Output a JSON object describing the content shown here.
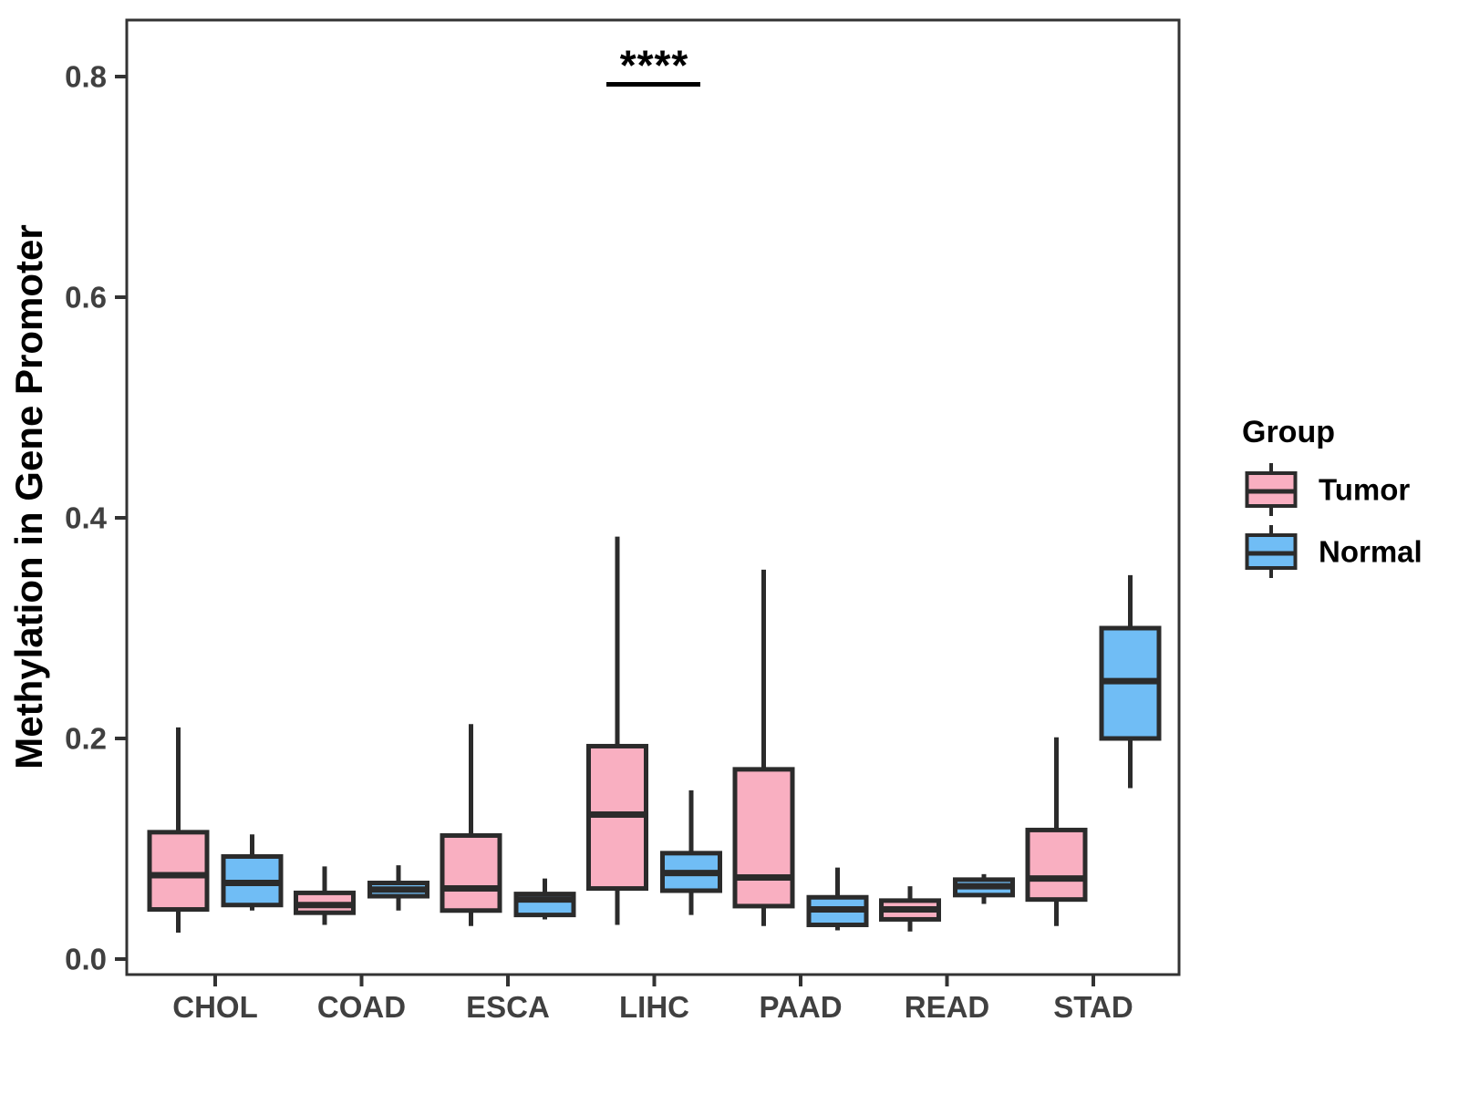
{
  "figure": {
    "legend": {
      "title": "Group",
      "items": [
        {
          "label": "Tumor",
          "color": "#F9AFC1"
        },
        {
          "label": "Normal",
          "color": "#70BDF5"
        }
      ]
    }
  },
  "style": {
    "tumor_fill": "#F9AFC1",
    "normal_fill": "#70BDF5",
    "box_outline": "#2B2B2B",
    "panel_border": "#333333",
    "axis_text": "#404040",
    "annotation_color": "#000000"
  },
  "chart_data": {
    "type": "boxplot",
    "title": "",
    "xlabel": "",
    "ylabel": "Methylation in Gene Promoter",
    "ylim": [
      0,
      0.85
    ],
    "yticks": [
      0.0,
      0.2,
      0.4,
      0.6,
      0.8
    ],
    "grid": false,
    "legend_position": "right",
    "categories": [
      "CHOL",
      "COAD",
      "ESCA",
      "LIHC",
      "PAAD",
      "READ",
      "STAD"
    ],
    "groups": [
      "Tumor",
      "Normal"
    ],
    "series": [
      {
        "name": "Tumor",
        "color": "#F9AFC1",
        "boxes": [
          {
            "category": "CHOL",
            "whisker_low": 0.024,
            "q1": 0.045,
            "median": 0.076,
            "q3": 0.115,
            "whisker_high": 0.21
          },
          {
            "category": "COAD",
            "whisker_low": 0.031,
            "q1": 0.042,
            "median": 0.049,
            "q3": 0.06,
            "whisker_high": 0.084
          },
          {
            "category": "ESCA",
            "whisker_low": 0.03,
            "q1": 0.044,
            "median": 0.064,
            "q3": 0.112,
            "whisker_high": 0.213
          },
          {
            "category": "LIHC",
            "whisker_low": 0.031,
            "q1": 0.064,
            "median": 0.131,
            "q3": 0.193,
            "whisker_high": 0.383
          },
          {
            "category": "PAAD",
            "whisker_low": 0.03,
            "q1": 0.048,
            "median": 0.074,
            "q3": 0.172,
            "whisker_high": 0.353
          },
          {
            "category": "READ",
            "whisker_low": 0.025,
            "q1": 0.036,
            "median": 0.045,
            "q3": 0.053,
            "whisker_high": 0.066
          },
          {
            "category": "STAD",
            "whisker_low": 0.03,
            "q1": 0.054,
            "median": 0.073,
            "q3": 0.117,
            "whisker_high": 0.201
          }
        ]
      },
      {
        "name": "Normal",
        "color": "#70BDF5",
        "boxes": [
          {
            "category": "CHOL",
            "whisker_low": 0.044,
            "q1": 0.049,
            "median": 0.069,
            "q3": 0.093,
            "whisker_high": 0.113
          },
          {
            "category": "COAD",
            "whisker_low": 0.044,
            "q1": 0.057,
            "median": 0.063,
            "q3": 0.069,
            "whisker_high": 0.085
          },
          {
            "category": "ESCA",
            "whisker_low": 0.036,
            "q1": 0.04,
            "median": 0.054,
            "q3": 0.059,
            "whisker_high": 0.073
          },
          {
            "category": "LIHC",
            "whisker_low": 0.04,
            "q1": 0.062,
            "median": 0.078,
            "q3": 0.096,
            "whisker_high": 0.153
          },
          {
            "category": "PAAD",
            "whisker_low": 0.026,
            "q1": 0.031,
            "median": 0.045,
            "q3": 0.056,
            "whisker_high": 0.083
          },
          {
            "category": "READ",
            "whisker_low": 0.05,
            "q1": 0.058,
            "median": 0.066,
            "q3": 0.072,
            "whisker_high": 0.077
          },
          {
            "category": "STAD",
            "whisker_low": 0.155,
            "q1": 0.2,
            "median": 0.252,
            "q3": 0.3,
            "whisker_high": 0.348
          }
        ]
      }
    ],
    "annotation": {
      "text": "****",
      "category": "LIHC",
      "spans_groups": [
        "Tumor",
        "Normal"
      ],
      "bar_y": 0.793
    }
  }
}
